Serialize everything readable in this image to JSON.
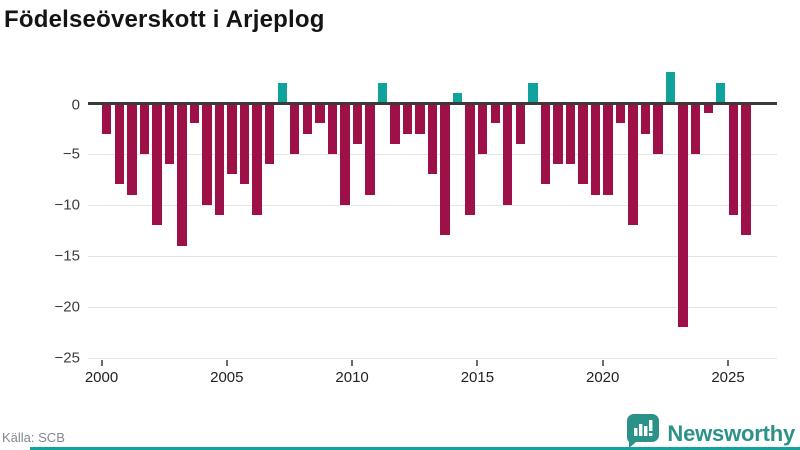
{
  "title": "Födelseöverskott i Arjeplog",
  "footer": {
    "source": "Källa: SCB"
  },
  "logo": {
    "text": "Newsworthy",
    "icon": "newsworthy-speech-bubble-bar-chart-icon"
  },
  "chart_data": {
    "type": "bar",
    "title": "Födelseöverskott i Arjeplog",
    "x": [
      "2000H1",
      "2000H2",
      "2001H1",
      "2001H2",
      "2002H1",
      "2002H2",
      "2003H1",
      "2003H2",
      "2004H1",
      "2004H2",
      "2005H1",
      "2005H2",
      "2006H1",
      "2006H2",
      "2007H1",
      "2007H2",
      "2008H1",
      "2008H2",
      "2009H1",
      "2009H2",
      "2010H1",
      "2010H2",
      "2011H1",
      "2011H2",
      "2012H1",
      "2012H2",
      "2013H1",
      "2013H2",
      "2014H1",
      "2014H2",
      "2015H1",
      "2015H2",
      "2016H1",
      "2016H2",
      "2017H1",
      "2017H2",
      "2018H1",
      "2018H2",
      "2019H1",
      "2019H2",
      "2020H1",
      "2020H2",
      "2021H1",
      "2021H2",
      "2022H1",
      "2022H2",
      "2023H1",
      "2023H2",
      "2024H1",
      "2024H2",
      "2025H1",
      "2025H2"
    ],
    "values": [
      -3,
      -8,
      -9,
      -5,
      -12,
      -6,
      -14,
      -2,
      -10,
      -11,
      -7,
      -8,
      -11,
      -6,
      2,
      -5,
      -3,
      -2,
      -5,
      -10,
      -4,
      -9,
      2,
      -4,
      -3,
      -3,
      -7,
      -13,
      1,
      -11,
      -5,
      -2,
      -10,
      -4,
      2,
      -8,
      -6,
      -6,
      -8,
      -9,
      -9,
      -2,
      -12,
      -3,
      -5,
      3,
      -22,
      -5,
      -1,
      2,
      -11,
      -13
    ],
    "xlabel": "",
    "ylabel": "",
    "xticks": [
      2000,
      2005,
      2010,
      2015,
      2020,
      2025
    ],
    "yticks": [
      0,
      -5,
      -10,
      -15,
      -20,
      -25
    ],
    "ytick_labels": [
      "0",
      "−5",
      "−10",
      "−15",
      "−20",
      "−25"
    ],
    "ylim": [
      -25,
      3
    ],
    "grid": "horizontal",
    "legend": "none",
    "colors": {
      "negative": "#9e1148",
      "positive": "#10a39d",
      "zero_axis": "#3a3a3a",
      "gridline": "#e4e4e4"
    }
  }
}
